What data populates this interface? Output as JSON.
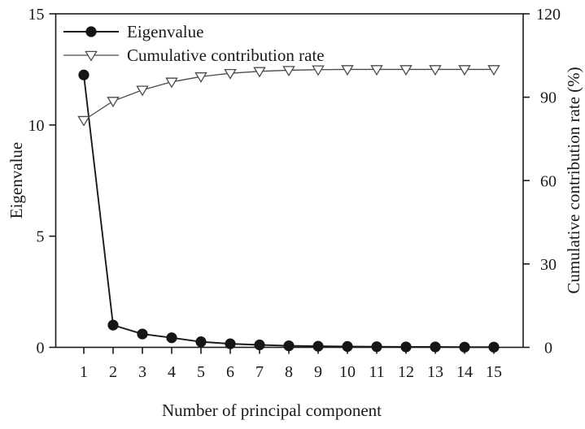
{
  "figure": {
    "background": "#ffffff",
    "ink_color": "#1a1a1a",
    "secondary_line_color": "#4a4a4a",
    "marker_fill_open": "#ffffff"
  },
  "chart_data": {
    "type": "line",
    "title": "",
    "xlabel": "Number of principal component",
    "x": [
      1,
      2,
      3,
      4,
      5,
      6,
      7,
      8,
      9,
      10,
      11,
      12,
      13,
      14,
      15
    ],
    "left_axis": {
      "label": "Eigenvalue",
      "ylim": [
        0,
        15
      ],
      "ticks": [
        0,
        5,
        10,
        15
      ]
    },
    "right_axis": {
      "label": "Cumulative contribution rate (%)",
      "ylim": [
        0,
        120
      ],
      "ticks": [
        0,
        30,
        60,
        90,
        120
      ]
    },
    "grid": "off",
    "legend_position": "top-left-inside",
    "series": [
      {
        "name": "Eigenvalue",
        "axis": "left",
        "marker": "filled-circle",
        "color": "#1a1a1a",
        "values": [
          12.25,
          1.0,
          0.6,
          0.43,
          0.25,
          0.16,
          0.11,
          0.07,
          0.05,
          0.04,
          0.03,
          0.02,
          0.02,
          0.01,
          0.01
        ]
      },
      {
        "name": "Cumulative contribution rate",
        "axis": "right",
        "marker": "open-triangle-down",
        "color": "#4a4a4a",
        "values": [
          81.7,
          88.6,
          92.6,
          95.5,
          97.4,
          98.6,
          99.3,
          99.7,
          99.9,
          100,
          100,
          100,
          100,
          100,
          100
        ]
      }
    ]
  }
}
